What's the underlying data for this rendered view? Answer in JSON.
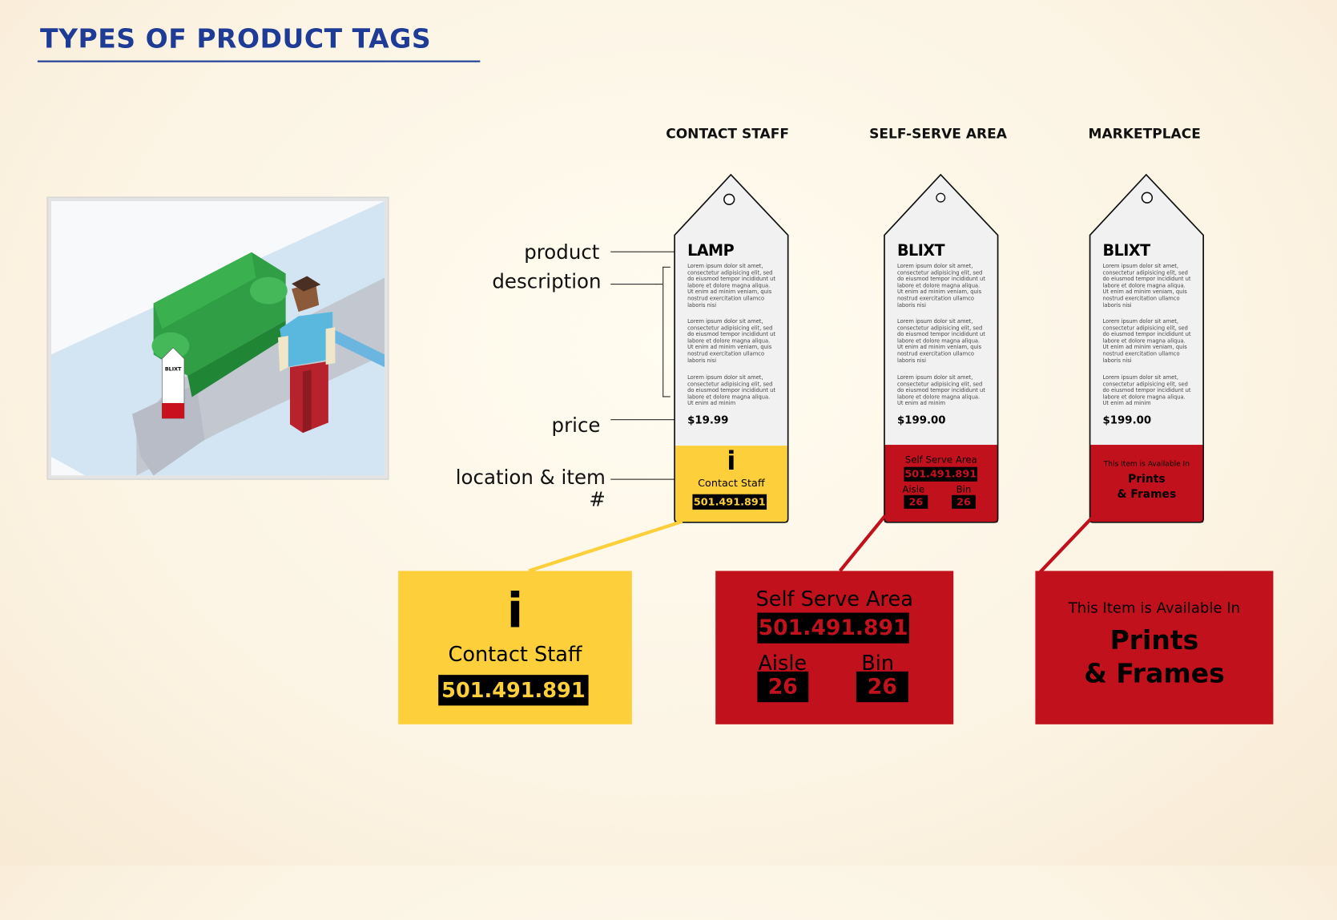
{
  "title": "TYPES OF PRODUCT TAGS",
  "columns": [
    "CONTACT STAFF",
    "SELF-SERVE AREA",
    "MARKETPLACE"
  ],
  "labels": {
    "product": "product",
    "description": "description",
    "price": "price",
    "location": "location & item #"
  },
  "illustration": {
    "tag_text": "BLIXT"
  },
  "lorem": "Lorem ipsum dolor sit amet, consectetur adipisicing elit, sed do eiusmod tempor incididunt ut labore et dolore magna aliqua. Ut enim ad minim veniam, quis nostrud exercitation ullamco laboris nisi",
  "lorem_short": "Lorem ipsum dolor sit amet, consectetur adipisicing elit, sed do eiusmod tempor incididunt ut labore et dolore magna aliqua. Ut enim ad minim",
  "tags": [
    {
      "name": "LAMP",
      "price": "$19.99",
      "info_icon": "i",
      "location": "Contact Staff",
      "item_number": "501.491.891",
      "color": "#fdd03b"
    },
    {
      "name": "BLIXT",
      "price": "$199.00",
      "location": "Self Serve Area",
      "item_number": "501.491.891",
      "aisle_label": "Aisle",
      "aisle": "26",
      "bin_label": "Bin",
      "bin": "26",
      "color": "#c1111d"
    },
    {
      "name": "BLIXT",
      "price": "$199.00",
      "availability": "This Item is Available In",
      "department_line1": "Prints",
      "department_line2": "& Frames",
      "color": "#c1111d"
    }
  ],
  "callouts": {
    "contact": {
      "icon": "i",
      "location": "Contact Staff",
      "item_number": "501.491.891"
    },
    "self_serve": {
      "location": "Self Serve Area",
      "item_number": "501.491.891",
      "aisle_label": "Aisle",
      "aisle": "26",
      "bin_label": "Bin",
      "bin": "26"
    },
    "marketplace": {
      "availability": "This Item is Available In",
      "department_line1": "Prints",
      "department_line2": "& Frames"
    }
  }
}
